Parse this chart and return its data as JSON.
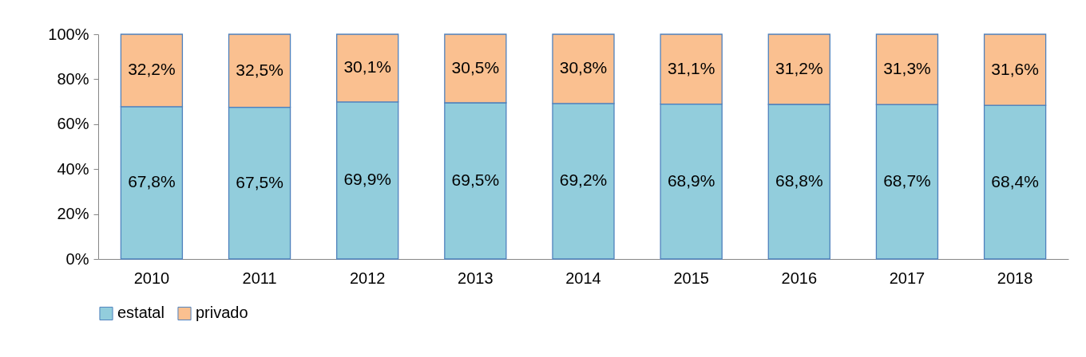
{
  "chart_data": {
    "type": "bar",
    "stacked": true,
    "categories": [
      "2010",
      "2011",
      "2012",
      "2013",
      "2014",
      "2015",
      "2016",
      "2017",
      "2018"
    ],
    "series": [
      {
        "name": "estatal",
        "color": "#92cddc",
        "values": [
          67.8,
          67.5,
          69.9,
          69.5,
          69.2,
          68.9,
          68.8,
          68.7,
          68.4
        ],
        "value_labels": [
          "67,8%",
          "67,5%",
          "69,9%",
          "69,5%",
          "69,2%",
          "68,9%",
          "68,8%",
          "68,7%",
          "68,4%"
        ]
      },
      {
        "name": "privado",
        "color": "#fac090",
        "values": [
          32.2,
          32.5,
          30.1,
          30.5,
          30.8,
          31.1,
          31.2,
          31.3,
          31.6
        ],
        "value_labels": [
          "32,2%",
          "32,5%",
          "30,1%",
          "30,5%",
          "30,8%",
          "31,1%",
          "31,2%",
          "31,3%",
          "31,6%"
        ]
      }
    ],
    "ylim": [
      0,
      100
    ],
    "yticks": [
      {
        "value": 0,
        "label": "0%"
      },
      {
        "value": 20,
        "label": "20%"
      },
      {
        "value": 40,
        "label": "40%"
      },
      {
        "value": 60,
        "label": "60%"
      },
      {
        "value": 80,
        "label": "80%"
      },
      {
        "value": 100,
        "label": "100%"
      }
    ],
    "grid": false,
    "legend": "bottom"
  }
}
